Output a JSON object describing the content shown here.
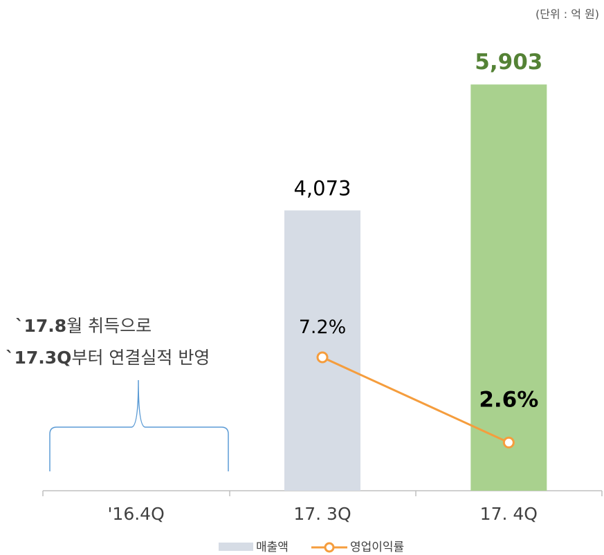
{
  "chart_data": {
    "type": "bar_line",
    "unit_note": "(단위 : 억 원)",
    "annotation": [
      [
        "`17.8",
        "월 취득으로"
      ],
      [
        "`17.3Q",
        "부터 연결실적 반영"
      ]
    ],
    "categories": [
      "'16.4Q",
      "17. 3Q",
      "17. 4Q"
    ],
    "series": [
      {
        "name": "매출액",
        "type": "bar",
        "color": "#d6dce5",
        "colors": [
          "#d6dce5",
          "#d6dce5",
          "#a9d18e"
        ],
        "values": [
          null,
          4073,
          5903
        ],
        "value_labels": [
          null,
          "4,073",
          "5,903"
        ],
        "value_label_colors": [
          "#000000",
          "#000000",
          "#548235"
        ],
        "value_label_bold": [
          false,
          false,
          true
        ]
      },
      {
        "name": "영업이익률",
        "type": "line",
        "axis": "y2",
        "color": "#f59d3d",
        "values": [
          null,
          7.2,
          2.6
        ],
        "value_labels": [
          null,
          "7.2%",
          "2.6%"
        ],
        "value_label_bold": [
          false,
          false,
          true
        ]
      }
    ],
    "ylim": [
      0,
      7000
    ],
    "y2lim": [
      0,
      26
    ],
    "legend": "bottom"
  }
}
